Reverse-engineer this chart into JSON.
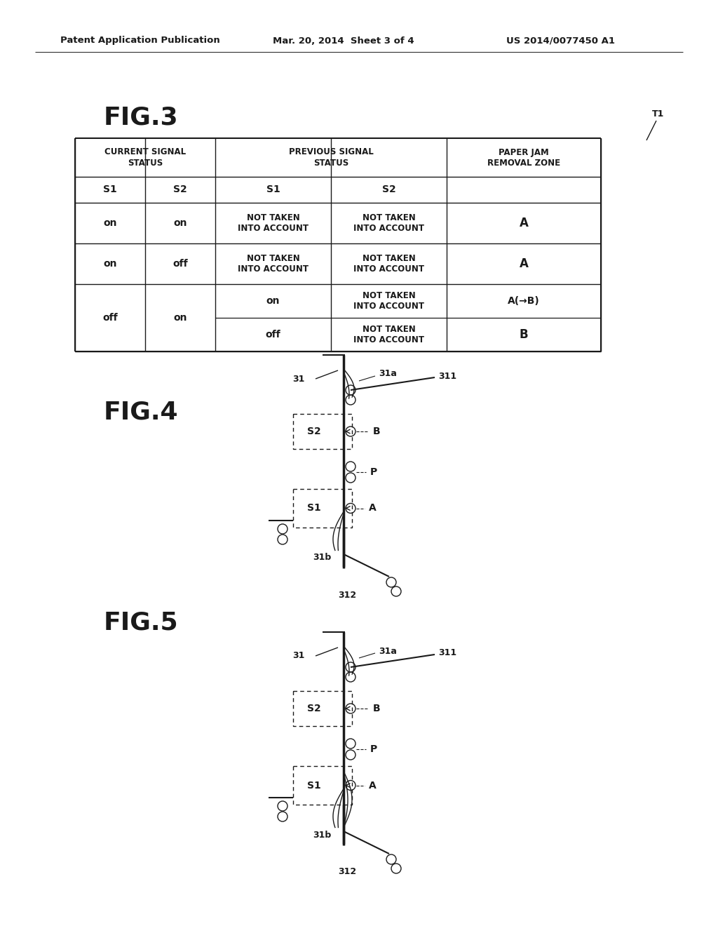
{
  "header_text": "Patent Application Publication",
  "date_text": "Mar. 20, 2014  Sheet 3 of 4",
  "patent_text": "US 2014/0077450 A1",
  "fig3_label": "FIG.3",
  "fig4_label": "FIG.4",
  "fig5_label": "FIG.5",
  "t1_label": "T1",
  "bg_color": "#ffffff",
  "text_color": "#1a1a1a"
}
